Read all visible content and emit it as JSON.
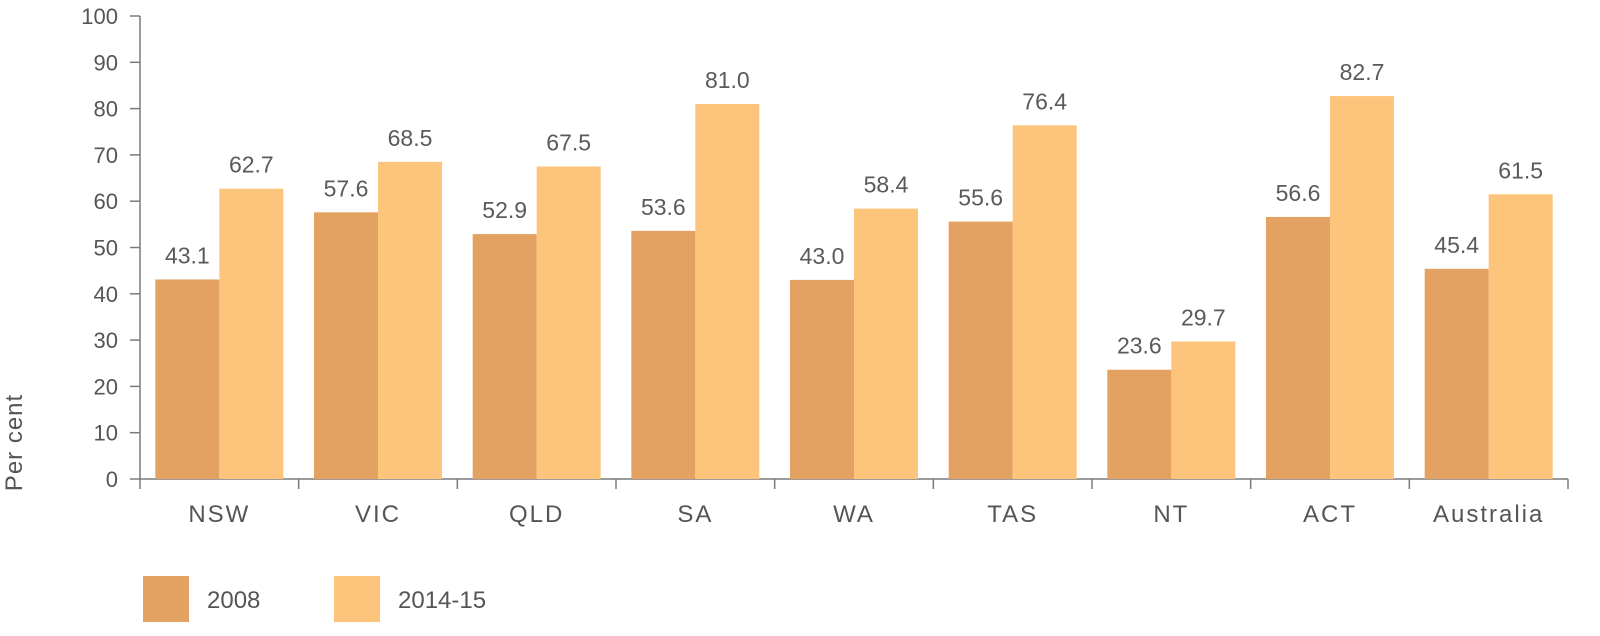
{
  "chart_data": {
    "type": "bar",
    "categories": [
      "NSW",
      "VIC",
      "QLD",
      "SA",
      "WA",
      "TAS",
      "NT",
      "ACT",
      "Australia"
    ],
    "series": [
      {
        "name": "2008",
        "values": [
          43.1,
          57.6,
          52.9,
          53.6,
          43.0,
          55.6,
          23.6,
          56.6,
          45.4
        ],
        "labels": [
          "43.1",
          "57.6",
          "52.9",
          "53.6",
          "43.0",
          "55.6",
          "23.6",
          "56.6",
          "45.4"
        ],
        "color": "#E3A262"
      },
      {
        "name": "2014-15",
        "values": [
          62.7,
          68.5,
          67.5,
          81.0,
          58.4,
          76.4,
          29.7,
          82.7,
          61.5
        ],
        "labels": [
          "62.7",
          "68.5",
          "67.5",
          "81.0",
          "58.4",
          "76.4",
          "29.7",
          "82.7",
          "61.5"
        ],
        "color": "#FCC57B"
      }
    ],
    "title": "",
    "xlabel": "",
    "ylabel": "Per cent",
    "ylim": [
      0,
      100
    ],
    "yticks": [
      "0",
      "10",
      "20",
      "30",
      "40",
      "50",
      "60",
      "70",
      "80",
      "90",
      "100"
    ],
    "grid": false,
    "legend_position": "bottom-left",
    "axis_color": "#7a7a7a"
  }
}
